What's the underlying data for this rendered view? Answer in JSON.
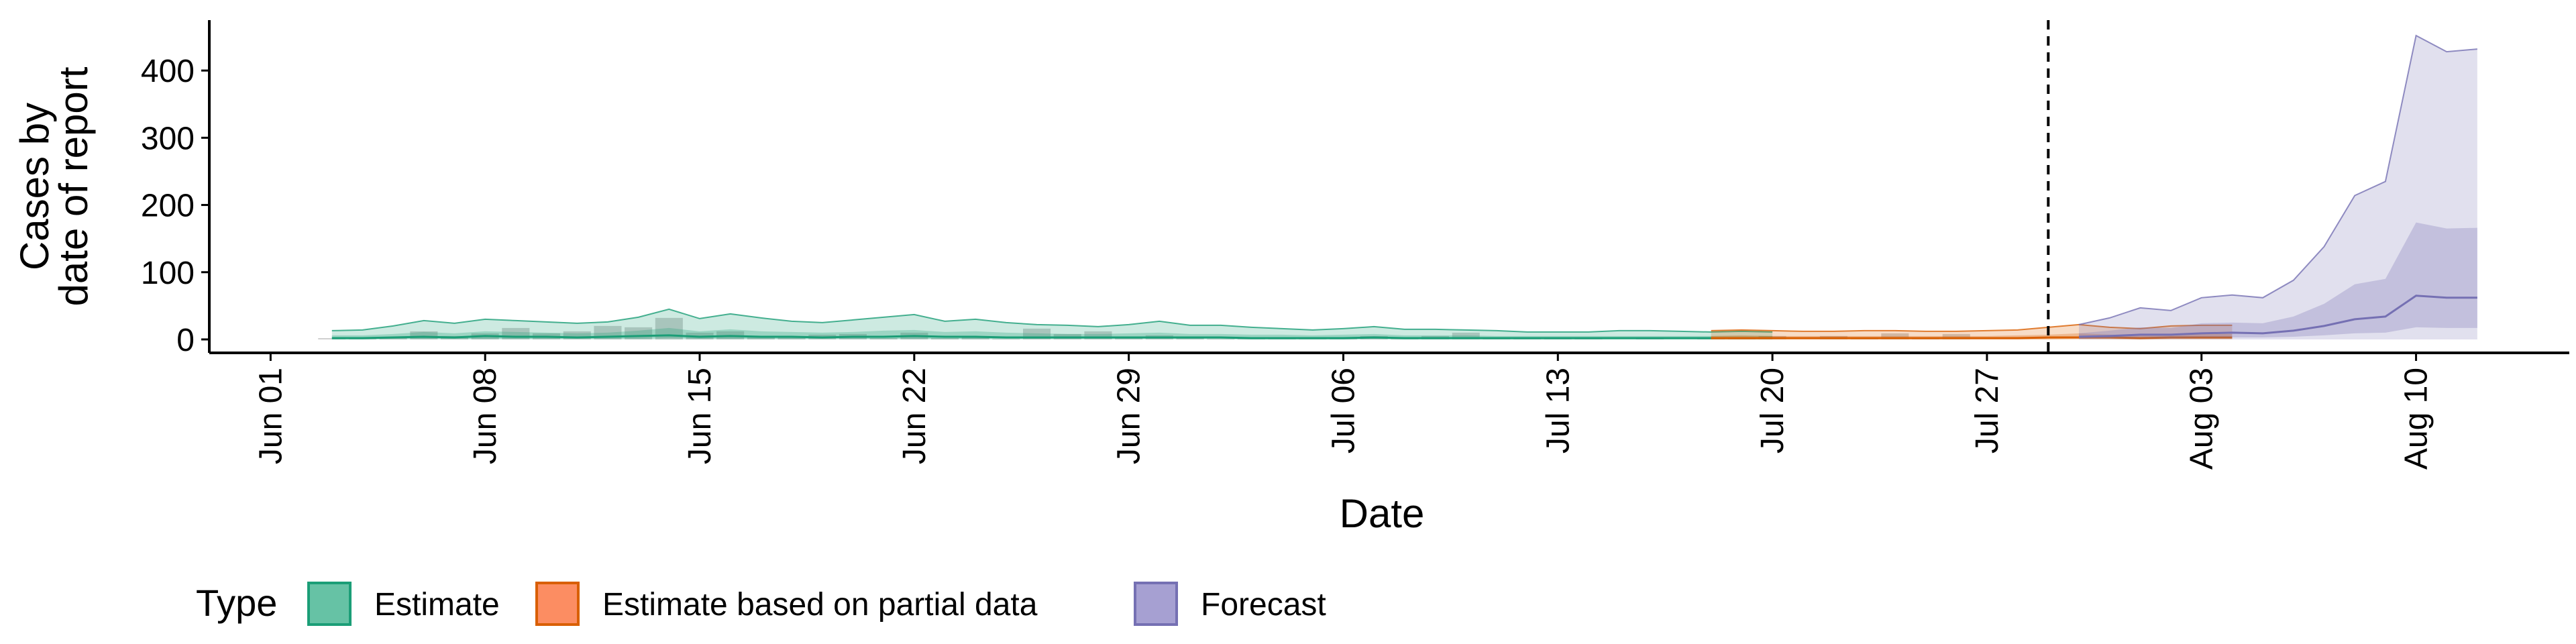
{
  "chart_data": {
    "type": "area",
    "xlabel": "Date",
    "ylabel_lines": [
      "Cases by",
      "date of report"
    ],
    "x_type": "date",
    "xlim": [
      "2020-05-30",
      "2020-08-15"
    ],
    "ylim": [
      -20,
      475
    ],
    "y_ticks": [
      0,
      100,
      200,
      300,
      400
    ],
    "x_ticks": [
      {
        "date": "2020-06-01",
        "label": "Jun 01"
      },
      {
        "date": "2020-06-08",
        "label": "Jun 08"
      },
      {
        "date": "2020-06-15",
        "label": "Jun 15"
      },
      {
        "date": "2020-06-22",
        "label": "Jun 22"
      },
      {
        "date": "2020-06-29",
        "label": "Jun 29"
      },
      {
        "date": "2020-07-06",
        "label": "Jul 06"
      },
      {
        "date": "2020-07-13",
        "label": "Jul 13"
      },
      {
        "date": "2020-07-20",
        "label": "Jul 20"
      },
      {
        "date": "2020-07-27",
        "label": "Jul 27"
      },
      {
        "date": "2020-08-03",
        "label": "Aug 03"
      },
      {
        "date": "2020-08-10",
        "label": "Aug 10"
      }
    ],
    "forecast_date": "2020-07-29",
    "legend": {
      "title": "Type",
      "position": "bottom",
      "entries": [
        {
          "label": "Estimate",
          "fill": "#66c2a5",
          "stroke": "#1b9e77"
        },
        {
          "label": "Estimate based on partial data",
          "fill": "#fc8d62",
          "stroke": "#d95f02"
        },
        {
          "label": "Forecast",
          "fill": "#a6a0d2",
          "stroke": "#7570b3"
        }
      ]
    },
    "observed": {
      "start": "2020-06-03",
      "values": [
        2,
        1,
        2,
        12,
        5,
        9,
        17,
        9,
        12,
        20,
        18,
        32,
        10,
        12,
        4,
        3,
        7,
        8,
        2,
        10,
        2,
        4,
        1,
        16,
        8,
        12,
        3,
        6,
        3,
        1,
        2,
        3,
        1,
        1,
        5,
        1,
        5,
        10,
        2,
        1,
        1,
        1,
        0,
        1,
        0,
        2,
        3,
        5,
        0,
        5,
        3,
        9,
        1,
        8
      ]
    },
    "series": [
      {
        "name": "Estimate",
        "start": "2020-06-03",
        "fill": "#1b9e77",
        "stroke": "#1b9e77",
        "upper90": [
          13,
          14,
          20,
          28,
          24,
          30,
          28,
          26,
          24,
          26,
          33,
          45,
          31,
          38,
          32,
          27,
          25,
          29,
          33,
          37,
          27,
          30,
          25,
          22,
          21,
          19,
          22,
          27,
          21,
          21,
          18,
          16,
          14,
          16,
          19,
          15,
          15,
          14,
          13,
          11,
          11,
          11,
          13,
          13,
          12,
          11,
          12,
          11
        ],
        "upper50": [
          6,
          6,
          8,
          11,
          9,
          12,
          11,
          10,
          9,
          10,
          13,
          17,
          12,
          15,
          12,
          11,
          10,
          11,
          13,
          14,
          11,
          12,
          10,
          9,
          8,
          8,
          9,
          10,
          8,
          8,
          7,
          7,
          6,
          7,
          8,
          6,
          6,
          6,
          5,
          5,
          5,
          5,
          5,
          5,
          5,
          5,
          5,
          5
        ],
        "median": [
          2,
          2,
          3,
          4,
          3,
          5,
          4,
          4,
          3,
          4,
          5,
          6,
          4,
          5,
          4,
          4,
          3,
          4,
          4,
          5,
          4,
          4,
          3,
          3,
          3,
          3,
          3,
          3,
          3,
          3,
          2,
          2,
          2,
          2,
          3,
          2,
          2,
          2,
          2,
          2,
          2,
          2,
          2,
          2,
          2,
          2,
          2,
          2
        ],
        "lower50": [
          0,
          0,
          1,
          1,
          1,
          1,
          1,
          1,
          1,
          1,
          1,
          2,
          1,
          1,
          1,
          1,
          1,
          1,
          1,
          1,
          1,
          1,
          1,
          1,
          1,
          1,
          1,
          1,
          1,
          1,
          0,
          0,
          0,
          0,
          1,
          0,
          0,
          0,
          0,
          0,
          0,
          0,
          0,
          0,
          0,
          0,
          0,
          0
        ],
        "lower90": [
          0,
          0,
          0,
          0,
          0,
          0,
          0,
          0,
          0,
          0,
          0,
          0,
          0,
          0,
          0,
          0,
          0,
          0,
          0,
          0,
          0,
          0,
          0,
          0,
          0,
          0,
          0,
          0,
          0,
          0,
          0,
          0,
          0,
          0,
          0,
          0,
          0,
          0,
          0,
          0,
          0,
          0,
          0,
          0,
          0,
          0,
          0,
          0
        ]
      },
      {
        "name": "Estimate based on partial data",
        "start": "2020-07-18",
        "fill": "#d95f02",
        "stroke": "#d95f02",
        "upper90": [
          13,
          14,
          13,
          12,
          12,
          13,
          13,
          12,
          12,
          13,
          14,
          18,
          22,
          18,
          16,
          20,
          21,
          21
        ],
        "upper50": [
          5,
          6,
          5,
          5,
          5,
          5,
          5,
          5,
          5,
          5,
          6,
          7,
          9,
          7,
          6,
          8,
          8,
          8
        ],
        "median": [
          2,
          2,
          2,
          2,
          2,
          2,
          2,
          2,
          2,
          2,
          2,
          3,
          3,
          3,
          2,
          3,
          3,
          3
        ],
        "lower50": [
          0,
          0,
          0,
          0,
          0,
          0,
          0,
          0,
          0,
          0,
          0,
          0,
          1,
          1,
          0,
          1,
          1,
          1
        ],
        "lower90": [
          0,
          0,
          0,
          0,
          0,
          0,
          0,
          0,
          0,
          0,
          0,
          0,
          0,
          0,
          0,
          0,
          0,
          0
        ]
      },
      {
        "name": "Forecast",
        "start": "2020-07-30",
        "fill": "#7570b3",
        "stroke": "#7570b3",
        "upper90": [
          22,
          32,
          47,
          43,
          62,
          66,
          62,
          88,
          138,
          214,
          235,
          452,
          428,
          432
        ],
        "upper50": [
          9,
          13,
          18,
          17,
          24,
          25,
          24,
          34,
          53,
          82,
          90,
          174,
          165,
          166
        ],
        "median": [
          4,
          5,
          7,
          7,
          9,
          10,
          9,
          13,
          20,
          30,
          34,
          65,
          62,
          62
        ],
        "lower50": [
          1,
          2,
          3,
          2,
          3,
          3,
          3,
          4,
          6,
          9,
          10,
          18,
          17,
          17
        ],
        "lower90": [
          0,
          0,
          0,
          0,
          0,
          0,
          0,
          0,
          0,
          0,
          0,
          0,
          0,
          0
        ]
      }
    ]
  }
}
